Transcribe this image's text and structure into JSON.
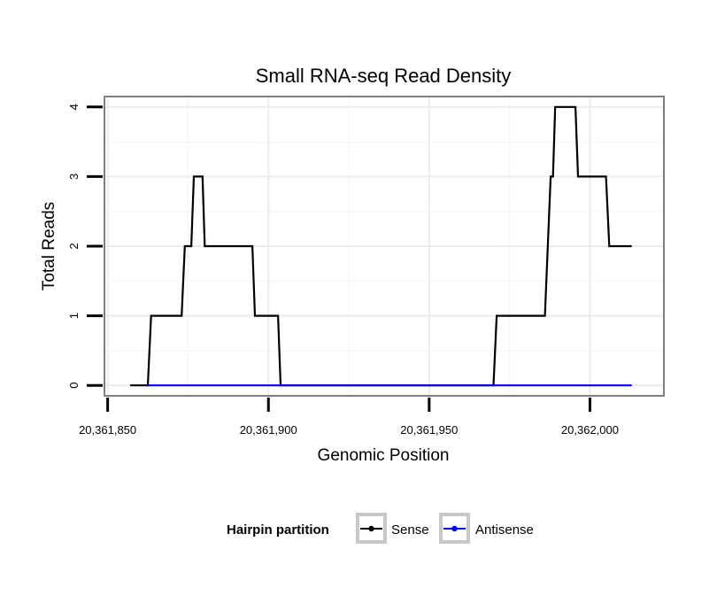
{
  "chart_data": {
    "type": "line",
    "title": "Small RNA-seq Read Density",
    "xlabel": "Genomic Position",
    "ylabel": "Total Reads",
    "xlim": [
      20361849,
      20362023
    ],
    "ylim": [
      -0.15,
      4.15
    ],
    "x_ticks": [
      20361850,
      20361900,
      20361950,
      20362000
    ],
    "x_tick_labels": [
      "20,361,850",
      "20,361,900",
      "20,361,950",
      "20,362,000"
    ],
    "y_ticks": [
      0,
      1,
      2,
      3,
      4
    ],
    "y_tick_labels": [
      "0",
      "1",
      "2",
      "3",
      "4"
    ],
    "grid": true,
    "legend": {
      "title": "Hairpin partition",
      "position": "bottom",
      "entries": [
        "Sense",
        "Antisense"
      ]
    },
    "series": [
      {
        "name": "Sense",
        "color": "#000000",
        "points": [
          [
            20361857,
            0
          ],
          [
            20361862.5,
            0
          ],
          [
            20361863.5,
            1
          ],
          [
            20361873,
            1
          ],
          [
            20361874,
            2
          ],
          [
            20361876,
            2
          ],
          [
            20361876.8,
            3
          ],
          [
            20361879.5,
            3
          ],
          [
            20361880.2,
            2
          ],
          [
            20361895,
            2
          ],
          [
            20361895.8,
            1
          ],
          [
            20361903,
            1
          ],
          [
            20361903.8,
            0
          ],
          [
            20361970,
            0
          ],
          [
            20361971,
            1
          ],
          [
            20361986,
            1
          ],
          [
            20361987.8,
            3
          ],
          [
            20361988.5,
            3
          ],
          [
            20361989.2,
            4
          ],
          [
            20361995.5,
            4
          ],
          [
            20361996.3,
            3
          ],
          [
            20362005,
            3
          ],
          [
            20362006,
            2
          ],
          [
            20362013,
            2
          ]
        ]
      },
      {
        "name": "Antisense",
        "color": "#0000ff",
        "points": [
          [
            20361862.5,
            0
          ],
          [
            20362013,
            0
          ]
        ]
      }
    ]
  }
}
